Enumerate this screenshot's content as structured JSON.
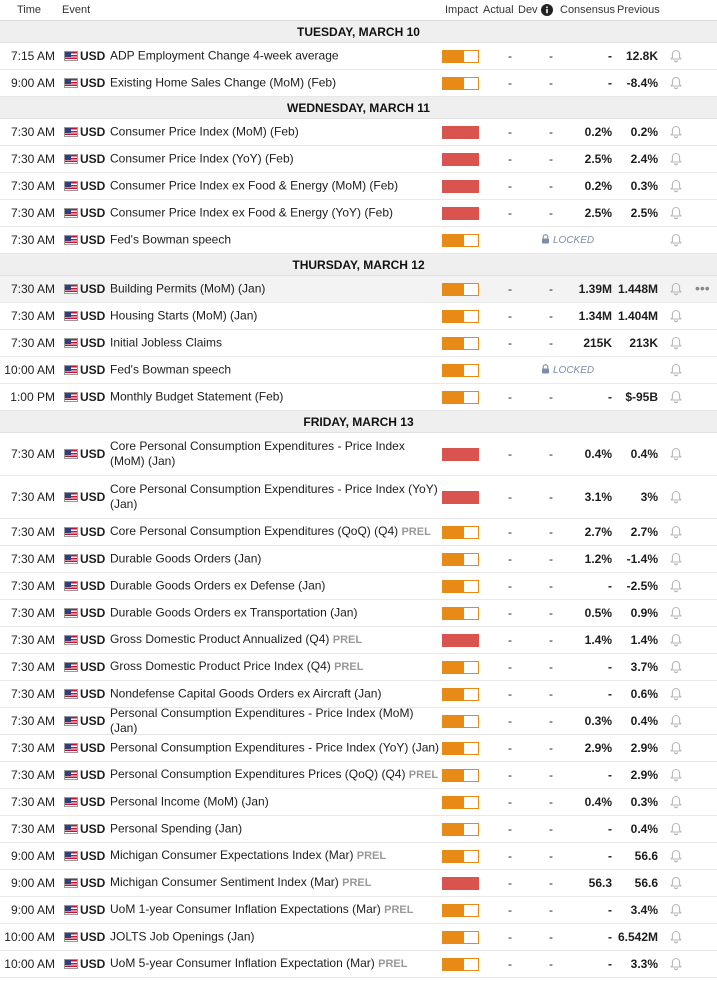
{
  "header": {
    "time": "Time",
    "event": "Event",
    "impact": "Impact",
    "actual": "Actual",
    "dev": "Dev",
    "consensus": "Consensus",
    "previous": "Previous",
    "info_icon": "info-icon"
  },
  "days": [
    {
      "title": "TUESDAY, MARCH 10",
      "events": [
        {
          "time": "7:15 AM",
          "currency": "USD",
          "event": "ADP Employment Change 4-week average",
          "impact": "medium",
          "actual": "-",
          "dev": "-",
          "consensus": "-",
          "previous": "12.8K"
        },
        {
          "time": "9:00 AM",
          "currency": "USD",
          "event": "Existing Home Sales Change (MoM) (Feb)",
          "impact": "medium",
          "actual": "-",
          "dev": "-",
          "consensus": "-",
          "previous": "-8.4%"
        }
      ]
    },
    {
      "title": "WEDNESDAY, MARCH 11",
      "events": [
        {
          "time": "7:30 AM",
          "currency": "USD",
          "event": "Consumer Price Index (MoM) (Feb)",
          "impact": "high",
          "actual": "-",
          "dev": "-",
          "consensus": "0.2%",
          "previous": "0.2%"
        },
        {
          "time": "7:30 AM",
          "currency": "USD",
          "event": "Consumer Price Index (YoY) (Feb)",
          "impact": "high",
          "actual": "-",
          "dev": "-",
          "consensus": "2.5%",
          "previous": "2.4%"
        },
        {
          "time": "7:30 AM",
          "currency": "USD",
          "event": "Consumer Price Index ex Food & Energy (MoM) (Feb)",
          "impact": "high",
          "actual": "-",
          "dev": "-",
          "consensus": "0.2%",
          "previous": "0.3%"
        },
        {
          "time": "7:30 AM",
          "currency": "USD",
          "event": "Consumer Price Index ex Food & Energy (YoY) (Feb)",
          "impact": "high",
          "actual": "-",
          "dev": "-",
          "consensus": "2.5%",
          "previous": "2.5%"
        },
        {
          "time": "7:30 AM",
          "currency": "USD",
          "event": "Fed's Bowman speech",
          "impact": "medium",
          "locked": "LOCKED"
        }
      ]
    },
    {
      "title": "THURSDAY, MARCH 12",
      "events": [
        {
          "time": "7:30 AM",
          "currency": "USD",
          "event": "Building Permits (MoM) (Jan)",
          "impact": "medium",
          "actual": "-",
          "dev": "-",
          "consensus": "1.39M",
          "previous": "1.448M",
          "highlighted": true,
          "more": "•••"
        },
        {
          "time": "7:30 AM",
          "currency": "USD",
          "event": "Housing Starts (MoM) (Jan)",
          "impact": "medium",
          "actual": "-",
          "dev": "-",
          "consensus": "1.34M",
          "previous": "1.404M"
        },
        {
          "time": "7:30 AM",
          "currency": "USD",
          "event": "Initial Jobless Claims",
          "impact": "medium",
          "actual": "-",
          "dev": "-",
          "consensus": "215K",
          "previous": "213K"
        },
        {
          "time": "10:00 AM",
          "currency": "USD",
          "event": "Fed's Bowman speech",
          "impact": "medium",
          "locked": "LOCKED"
        },
        {
          "time": "1:00 PM",
          "currency": "USD",
          "event": "Monthly Budget Statement (Feb)",
          "impact": "medium",
          "actual": "-",
          "dev": "-",
          "consensus": "-",
          "previous": "$-95B"
        }
      ]
    },
    {
      "title": "FRIDAY, MARCH 13",
      "events": [
        {
          "time": "7:30 AM",
          "currency": "USD",
          "event": "Core Personal Consumption Expenditures - Price Index (MoM) (Jan)",
          "impact": "high",
          "actual": "-",
          "dev": "-",
          "consensus": "0.4%",
          "previous": "0.4%",
          "tall": true
        },
        {
          "time": "7:30 AM",
          "currency": "USD",
          "event": "Core Personal Consumption Expenditures - Price Index (YoY) (Jan)",
          "impact": "high",
          "actual": "-",
          "dev": "-",
          "consensus": "3.1%",
          "previous": "3%",
          "tall": true
        },
        {
          "time": "7:30 AM",
          "currency": "USD",
          "event": "Core Personal Consumption Expenditures (QoQ) (Q4)",
          "tag": "PREL",
          "impact": "medium",
          "actual": "-",
          "dev": "-",
          "consensus": "2.7%",
          "previous": "2.7%"
        },
        {
          "time": "7:30 AM",
          "currency": "USD",
          "event": "Durable Goods Orders (Jan)",
          "impact": "medium",
          "actual": "-",
          "dev": "-",
          "consensus": "1.2%",
          "previous": "-1.4%"
        },
        {
          "time": "7:30 AM",
          "currency": "USD",
          "event": "Durable Goods Orders ex Defense (Jan)",
          "impact": "medium",
          "actual": "-",
          "dev": "-",
          "consensus": "-",
          "previous": "-2.5%"
        },
        {
          "time": "7:30 AM",
          "currency": "USD",
          "event": "Durable Goods Orders ex Transportation (Jan)",
          "impact": "medium",
          "actual": "-",
          "dev": "-",
          "consensus": "0.5%",
          "previous": "0.9%"
        },
        {
          "time": "7:30 AM",
          "currency": "USD",
          "event": "Gross Domestic Product Annualized (Q4)",
          "tag": "PREL",
          "impact": "high",
          "actual": "-",
          "dev": "-",
          "consensus": "1.4%",
          "previous": "1.4%"
        },
        {
          "time": "7:30 AM",
          "currency": "USD",
          "event": "Gross Domestic Product Price Index (Q4)",
          "tag": "PREL",
          "impact": "medium",
          "actual": "-",
          "dev": "-",
          "consensus": "-",
          "previous": "3.7%"
        },
        {
          "time": "7:30 AM",
          "currency": "USD",
          "event": "Nondefense Capital Goods Orders ex Aircraft (Jan)",
          "impact": "medium",
          "actual": "-",
          "dev": "-",
          "consensus": "-",
          "previous": "0.6%"
        },
        {
          "time": "7:30 AM",
          "currency": "USD",
          "event": "Personal Consumption Expenditures - Price Index (MoM) (Jan)",
          "impact": "medium",
          "actual": "-",
          "dev": "-",
          "consensus": "0.3%",
          "previous": "0.4%"
        },
        {
          "time": "7:30 AM",
          "currency": "USD",
          "event": "Personal Consumption Expenditures - Price Index (YoY) (Jan)",
          "impact": "medium",
          "actual": "-",
          "dev": "-",
          "consensus": "2.9%",
          "previous": "2.9%"
        },
        {
          "time": "7:30 AM",
          "currency": "USD",
          "event": "Personal Consumption Expenditures Prices (QoQ) (Q4)",
          "tag": "PREL",
          "impact": "medium",
          "actual": "-",
          "dev": "-",
          "consensus": "-",
          "previous": "2.9%"
        },
        {
          "time": "7:30 AM",
          "currency": "USD",
          "event": "Personal Income (MoM) (Jan)",
          "impact": "medium",
          "actual": "-",
          "dev": "-",
          "consensus": "0.4%",
          "previous": "0.3%"
        },
        {
          "time": "7:30 AM",
          "currency": "USD",
          "event": "Personal Spending (Jan)",
          "impact": "medium",
          "actual": "-",
          "dev": "-",
          "consensus": "-",
          "previous": "0.4%"
        },
        {
          "time": "9:00 AM",
          "currency": "USD",
          "event": "Michigan Consumer Expectations Index (Mar)",
          "tag": "PREL",
          "impact": "medium",
          "actual": "-",
          "dev": "-",
          "consensus": "-",
          "previous": "56.6"
        },
        {
          "time": "9:00 AM",
          "currency": "USD",
          "event": "Michigan Consumer Sentiment Index (Mar)",
          "tag": "PREL",
          "impact": "high",
          "actual": "-",
          "dev": "-",
          "consensus": "56.3",
          "previous": "56.6"
        },
        {
          "time": "9:00 AM",
          "currency": "USD",
          "event": "UoM 1-year Consumer Inflation Expectations (Mar)",
          "tag": "PREL",
          "impact": "medium",
          "actual": "-",
          "dev": "-",
          "consensus": "-",
          "previous": "3.4%"
        },
        {
          "time": "10:00 AM",
          "currency": "USD",
          "event": "JOLTS Job Openings (Jan)",
          "impact": "medium",
          "actual": "-",
          "dev": "-",
          "consensus": "-",
          "previous": "6.542M"
        },
        {
          "time": "10:00 AM",
          "currency": "USD",
          "event": "UoM 5-year Consumer Inflation Expectation (Mar)",
          "tag": "PREL",
          "impact": "medium",
          "actual": "-",
          "dev": "-",
          "consensus": "-",
          "previous": "3.3%"
        }
      ]
    }
  ]
}
